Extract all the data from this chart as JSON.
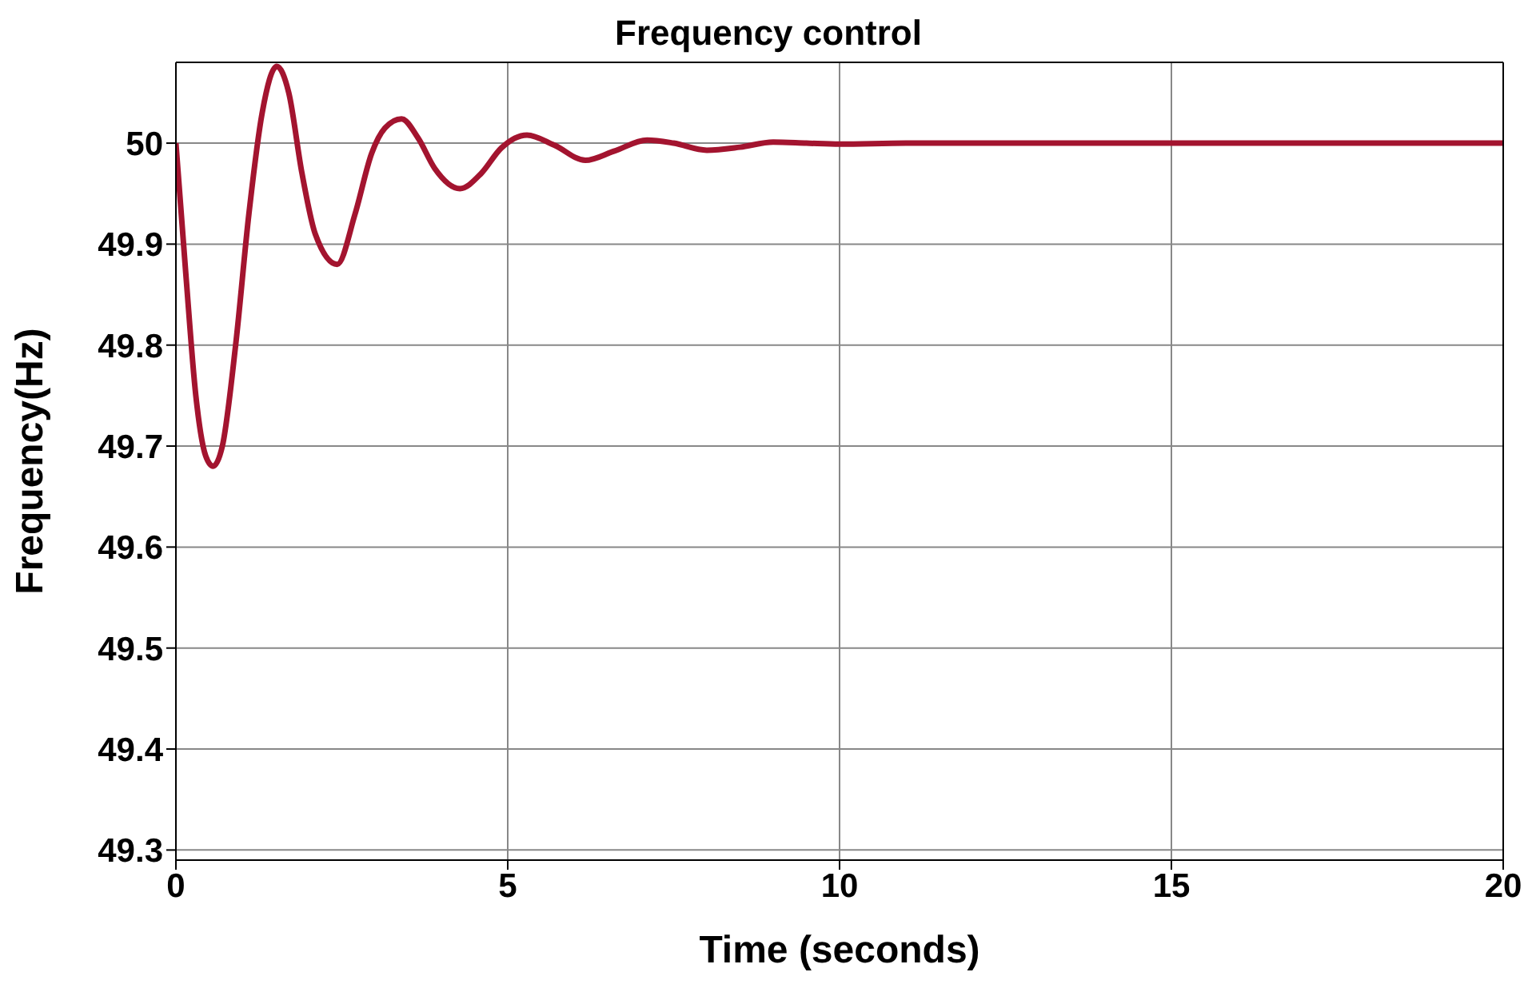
{
  "chart_data": {
    "type": "line",
    "title": "Frequency control",
    "xlabel": "Time (seconds)",
    "ylabel": "Frequency(Hz)",
    "xlim": [
      0,
      20
    ],
    "xticks": [
      0,
      5,
      10,
      15,
      20
    ],
    "ylim": [
      49.29,
      50.08
    ],
    "yticks": [
      49.3,
      49.4,
      49.5,
      49.6,
      49.7,
      49.8,
      49.9,
      50
    ],
    "grid": true,
    "legend": false,
    "marker": "none",
    "line_style": "solid",
    "series": [
      {
        "color": "#a3142f",
        "x": [
          0,
          0.15,
          0.3,
          0.45,
          0.56,
          0.7,
          0.9,
          1.1,
          1.3,
          1.52,
          1.7,
          1.9,
          2.1,
          2.43,
          2.7,
          2.95,
          3.15,
          3.4,
          3.65,
          3.9,
          4.28,
          4.6,
          4.9,
          5.29,
          5.7,
          6.17,
          6.6,
          7.1,
          7.5,
          8.0,
          8.5,
          9.0,
          9.5,
          10,
          11,
          12,
          14,
          16,
          18,
          20
        ],
        "values": [
          50,
          49.87,
          49.75,
          49.69,
          49.68,
          49.7,
          49.8,
          49.93,
          50.03,
          50.076,
          50.05,
          49.97,
          49.91,
          49.88,
          49.93,
          49.99,
          50.015,
          50.024,
          50.005,
          49.975,
          49.955,
          49.97,
          49.995,
          50.008,
          49.998,
          49.983,
          49.992,
          50.003,
          50,
          49.993,
          49.996,
          50.001,
          50,
          49.999,
          50,
          50,
          50,
          50,
          50,
          50
        ]
      }
    ]
  }
}
